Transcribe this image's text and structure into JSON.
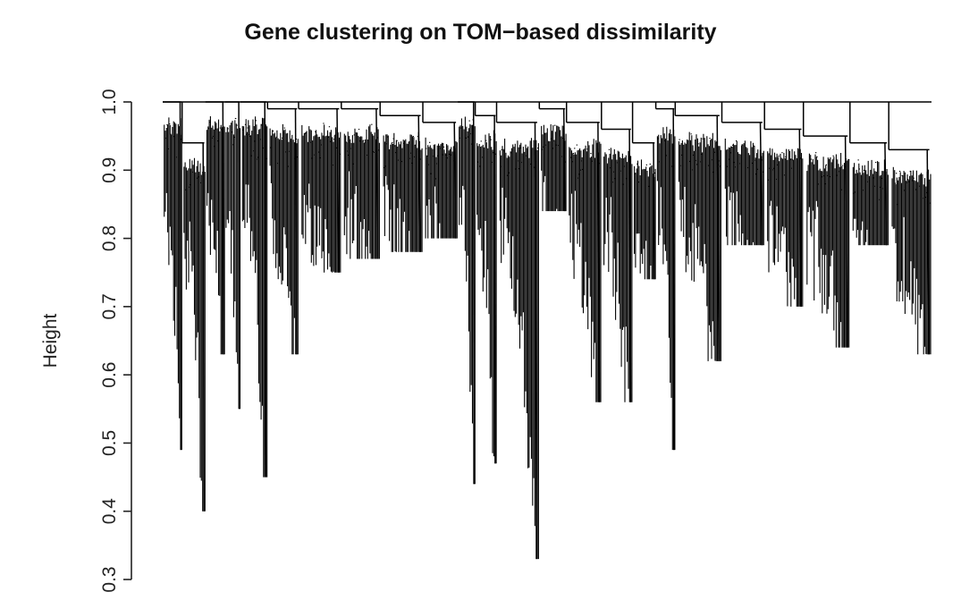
{
  "chart_data": {
    "type": "dendrogram",
    "title": "Gene clustering on TOM−based dissimilarity",
    "xlabel": "",
    "ylabel": "Height",
    "ylim": [
      0.3,
      1.0
    ],
    "yticks": [
      0.3,
      0.4,
      0.5,
      0.6,
      0.7,
      0.8,
      0.9,
      1.0
    ],
    "ytick_labels": [
      "0.3",
      "0.4",
      "0.5",
      "0.6",
      "0.7",
      "0.8",
      "0.9",
      "1.0"
    ],
    "root_height": 1.0,
    "branches": [
      {
        "name": "b01",
        "merge_height": 1.0,
        "min_height": 0.49
      },
      {
        "name": "b02",
        "merge_height": 0.94,
        "min_height": 0.4
      },
      {
        "name": "b03",
        "merge_height": 1.0,
        "min_height": 0.63
      },
      {
        "name": "b04",
        "merge_height": 1.0,
        "min_height": 0.55
      },
      {
        "name": "b05",
        "merge_height": 1.0,
        "min_height": 0.45
      },
      {
        "name": "b06",
        "merge_height": 0.99,
        "min_height": 0.63
      },
      {
        "name": "b07",
        "merge_height": 0.99,
        "min_height": 0.75
      },
      {
        "name": "b08",
        "merge_height": 0.99,
        "min_height": 0.77
      },
      {
        "name": "b09",
        "merge_height": 0.98,
        "min_height": 0.78
      },
      {
        "name": "b10",
        "merge_height": 0.97,
        "min_height": 0.8
      },
      {
        "name": "b11",
        "merge_height": 1.0,
        "min_height": 0.44
      },
      {
        "name": "b12",
        "merge_height": 0.98,
        "min_height": 0.47
      },
      {
        "name": "b13",
        "merge_height": 0.97,
        "min_height": 0.33
      },
      {
        "name": "b14",
        "merge_height": 0.99,
        "min_height": 0.84
      },
      {
        "name": "b15",
        "merge_height": 0.97,
        "min_height": 0.56
      },
      {
        "name": "b16",
        "merge_height": 0.96,
        "min_height": 0.56
      },
      {
        "name": "b17",
        "merge_height": 0.94,
        "min_height": 0.74
      },
      {
        "name": "b18",
        "merge_height": 0.99,
        "min_height": 0.49
      },
      {
        "name": "b19",
        "merge_height": 0.98,
        "min_height": 0.62
      },
      {
        "name": "b20",
        "merge_height": 0.97,
        "min_height": 0.79
      },
      {
        "name": "b21",
        "merge_height": 0.96,
        "min_height": 0.7
      },
      {
        "name": "b22",
        "merge_height": 0.95,
        "min_height": 0.64
      },
      {
        "name": "b23",
        "merge_height": 0.94,
        "min_height": 0.79
      },
      {
        "name": "b24",
        "merge_height": 0.93,
        "min_height": 0.63
      }
    ]
  }
}
